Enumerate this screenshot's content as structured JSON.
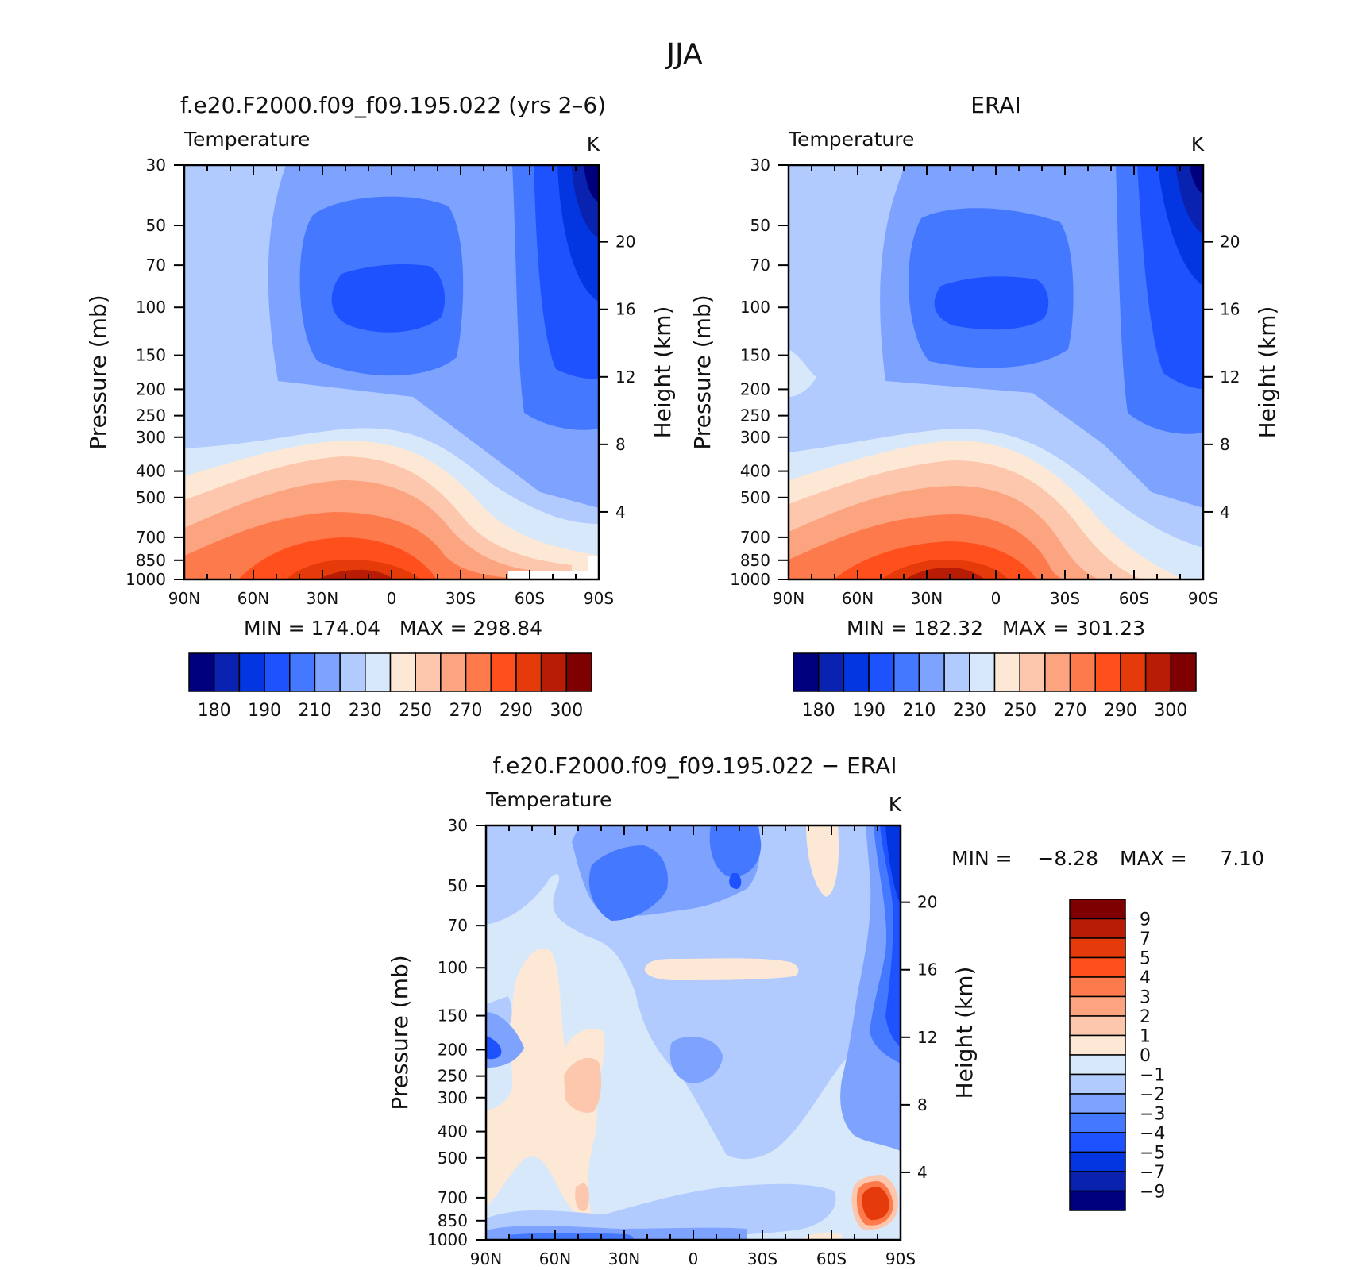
{
  "figure": {
    "title": "JJA"
  },
  "chart_data": [
    {
      "type": "heatmap",
      "title": "f.e20.F2000.f09_f09.195.022 (yrs 2–6)",
      "variable": "Temperature",
      "units": "K",
      "ylabel": "Pressure (mb)",
      "y2label": "Height (km)",
      "x_ticks": [
        "90N",
        "60N",
        "30N",
        "0",
        "30S",
        "60S",
        "90S"
      ],
      "y_ticks": [
        30,
        50,
        70,
        100,
        150,
        200,
        250,
        300,
        400,
        500,
        700,
        850,
        1000
      ],
      "y2_ticks": [
        4,
        8,
        12,
        16,
        20
      ],
      "y_scale": "log",
      "ylim": [
        1000,
        30
      ],
      "stats": {
        "min_label": "MIN =",
        "min": "174.04",
        "max_label": "MAX =",
        "max": "298.84"
      },
      "colorbar": {
        "orientation": "horizontal",
        "colors": [
          "#00007f",
          "#0a22b0",
          "#0336e0",
          "#1f52ff",
          "#4478ff",
          "#7da3ff",
          "#b2cbff",
          "#d8e8fb",
          "#fde8d6",
          "#fcc7ad",
          "#fba47f",
          "#fc7a4c",
          "#ff4f1c",
          "#e53a0a",
          "#b81c05",
          "#7f0000"
        ],
        "labels": [
          "180",
          "190",
          "210",
          "230",
          "250",
          "270",
          "290",
          "300"
        ]
      }
    },
    {
      "type": "heatmap",
      "title": "ERAI",
      "variable": "Temperature",
      "units": "K",
      "ylabel": "Pressure (mb)",
      "y2label": "Height (km)",
      "x_ticks": [
        "90N",
        "60N",
        "30N",
        "0",
        "30S",
        "60S",
        "90S"
      ],
      "y_ticks": [
        30,
        50,
        70,
        100,
        150,
        200,
        250,
        300,
        400,
        500,
        700,
        850,
        1000
      ],
      "y2_ticks": [
        4,
        8,
        12,
        16,
        20
      ],
      "y_scale": "log",
      "ylim": [
        1000,
        30
      ],
      "stats": {
        "min_label": "MIN =",
        "min": "182.32",
        "max_label": "MAX =",
        "max": "301.23"
      },
      "colorbar": {
        "orientation": "horizontal",
        "colors": [
          "#00007f",
          "#0a22b0",
          "#0336e0",
          "#1f52ff",
          "#4478ff",
          "#7da3ff",
          "#b2cbff",
          "#d8e8fb",
          "#fde8d6",
          "#fcc7ad",
          "#fba47f",
          "#fc7a4c",
          "#ff4f1c",
          "#e53a0a",
          "#b81c05",
          "#7f0000"
        ],
        "labels": [
          "180",
          "190",
          "210",
          "230",
          "250",
          "270",
          "290",
          "300"
        ]
      }
    },
    {
      "type": "heatmap",
      "title": "f.e20.F2000.f09_f09.195.022 − ERAI",
      "variable": "Temperature",
      "units": "K",
      "ylabel": "Pressure (mb)",
      "y2label": "Height (km)",
      "x_ticks": [
        "90N",
        "60N",
        "30N",
        "0",
        "30S",
        "60S",
        "90S"
      ],
      "y_ticks": [
        30,
        50,
        70,
        100,
        150,
        200,
        250,
        300,
        400,
        500,
        700,
        850,
        1000
      ],
      "y2_ticks": [
        4,
        8,
        12,
        16,
        20
      ],
      "y_scale": "log",
      "ylim": [
        1000,
        30
      ],
      "stats": {
        "min_label": "MIN =",
        "min": "−8.28",
        "max_label": "MAX =",
        "max": "7.10"
      },
      "colorbar": {
        "orientation": "vertical",
        "colors": [
          "#7f0000",
          "#b81c05",
          "#e53a0a",
          "#ff4f1c",
          "#fc7a4c",
          "#fba47f",
          "#fcc7ad",
          "#fde8d6",
          "#d8e8fb",
          "#b2cbff",
          "#7da3ff",
          "#4478ff",
          "#1f52ff",
          "#0336e0",
          "#0a22b0",
          "#00007f"
        ],
        "labels": [
          "9",
          "7",
          "5",
          "4",
          "3",
          "2",
          "1",
          "0",
          "−1",
          "−2",
          "−3",
          "−4",
          "−5",
          "−7",
          "−9"
        ]
      }
    }
  ]
}
